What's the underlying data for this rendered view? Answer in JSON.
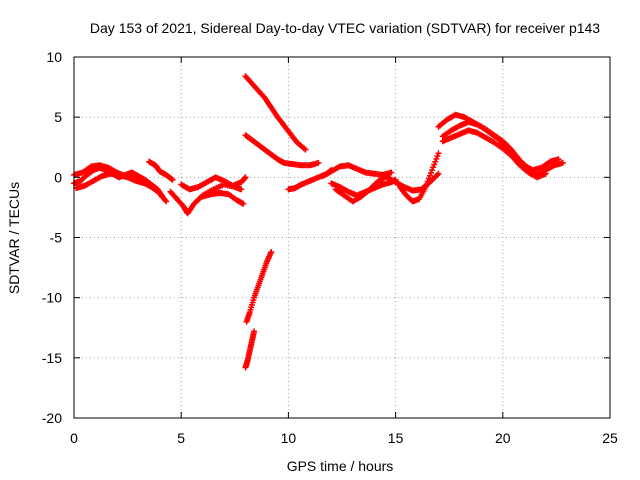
{
  "chart_data": {
    "type": "scatter",
    "title": "Day 153 of 2021, Sidereal Day-to-day VTEC variation (SDTVAR) for receiver p143",
    "xlabel": "GPS time / hours",
    "ylabel": "SDTVAR / TECUs",
    "xlim": [
      0,
      25
    ],
    "ylim": [
      -20,
      10
    ],
    "xticks": [
      0,
      5,
      10,
      15,
      20,
      25
    ],
    "yticks": [
      -20,
      -15,
      -10,
      -5,
      0,
      5,
      10
    ],
    "grid": true,
    "marker": "+",
    "color": "#ff0000",
    "series": [
      {
        "name": "track-a",
        "x": [
          0.0,
          0.3,
          0.6,
          0.9,
          1.2,
          1.5,
          1.8,
          2.1,
          2.4,
          2.7,
          3.0,
          3.3,
          3.6,
          3.9,
          4.1
        ],
        "y": [
          -0.5,
          -0.3,
          0.2,
          0.6,
          0.8,
          0.6,
          0.3,
          0.0,
          0.2,
          0.4,
          0.1,
          -0.2,
          -0.6,
          -1.0,
          -1.6
        ]
      },
      {
        "name": "track-b",
        "x": [
          0.0,
          0.4,
          0.8,
          1.2,
          1.6,
          2.0,
          2.4,
          2.8,
          3.2,
          3.6,
          4.0,
          4.3
        ],
        "y": [
          0.2,
          0.4,
          0.9,
          1.0,
          0.8,
          0.4,
          0.1,
          -0.1,
          -0.4,
          -0.8,
          -1.3,
          -2.0
        ]
      },
      {
        "name": "track-c",
        "x": [
          0.1,
          0.5,
          0.9,
          1.3,
          1.7,
          2.1,
          2.5,
          2.9,
          3.3
        ],
        "y": [
          -0.9,
          -0.7,
          -0.3,
          0.1,
          0.3,
          0.2,
          0.0,
          -0.3,
          -0.5
        ]
      },
      {
        "name": "track-d",
        "x": [
          3.5,
          3.8,
          4.0,
          4.3,
          4.6
        ],
        "y": [
          1.3,
          1.0,
          0.5,
          0.2,
          -0.2
        ]
      },
      {
        "name": "track-e",
        "x": [
          4.5,
          4.8,
          5.1,
          5.3,
          5.6,
          6.0,
          6.5,
          7.0,
          7.5,
          7.8
        ],
        "y": [
          -1.2,
          -1.8,
          -2.4,
          -3.0,
          -2.2,
          -1.5,
          -1.0,
          -0.6,
          -0.8,
          -1.0
        ]
      },
      {
        "name": "track-f",
        "x": [
          5.0,
          5.4,
          5.8,
          6.2,
          6.6,
          7.0,
          7.4,
          7.8,
          8.0
        ],
        "y": [
          -0.6,
          -1.0,
          -0.8,
          -0.4,
          0.0,
          -0.3,
          -0.7,
          -0.4,
          0.0
        ]
      },
      {
        "name": "track-g",
        "x": [
          6.0,
          6.4,
          6.8,
          7.2,
          7.6,
          7.9
        ],
        "y": [
          -1.6,
          -1.4,
          -1.3,
          -1.4,
          -1.9,
          -2.2
        ]
      },
      {
        "name": "track-h",
        "x": [
          8.0,
          8.3,
          8.6,
          8.9,
          9.2,
          9.5,
          9.8,
          10.1,
          10.4,
          10.8
        ],
        "y": [
          8.4,
          7.8,
          7.2,
          6.6,
          5.8,
          5.0,
          4.3,
          3.6,
          2.9,
          2.3
        ]
      },
      {
        "name": "track-i",
        "x": [
          8.0,
          8.3,
          8.6,
          8.9,
          9.2,
          9.5,
          9.8,
          10.2,
          10.6,
          11.0,
          11.4
        ],
        "y": [
          3.5,
          3.1,
          2.7,
          2.3,
          1.9,
          1.5,
          1.2,
          1.1,
          1.0,
          1.0,
          1.2
        ]
      },
      {
        "name": "track-j",
        "x": [
          9.2,
          9.0,
          8.8,
          8.6,
          8.4,
          8.2,
          8.05
        ],
        "y": [
          -6.2,
          -7.0,
          -8.0,
          -9.0,
          -10.0,
          -11.2,
          -12.0
        ]
      },
      {
        "name": "track-k",
        "x": [
          8.4,
          8.3,
          8.2,
          8.1,
          8.0
        ],
        "y": [
          -12.8,
          -13.6,
          -14.4,
          -15.2,
          -15.8
        ]
      },
      {
        "name": "track-l",
        "x": [
          10.0,
          10.3,
          10.6,
          11.0,
          11.4,
          11.8,
          12.0
        ],
        "y": [
          -1.0,
          -0.9,
          -0.6,
          -0.3,
          0.0,
          0.3,
          0.6
        ]
      },
      {
        "name": "track-m",
        "x": [
          11.6,
          12.0,
          12.4,
          12.8,
          13.2,
          13.6,
          14.0,
          14.4,
          14.8
        ],
        "y": [
          0.1,
          0.5,
          0.9,
          1.0,
          0.7,
          0.4,
          0.3,
          0.2,
          0.4
        ]
      },
      {
        "name": "track-n",
        "x": [
          12.0,
          12.4,
          12.8,
          13.2,
          13.6,
          14.0,
          14.4,
          14.8,
          15.0
        ],
        "y": [
          -0.5,
          -0.8,
          -1.2,
          -1.5,
          -1.2,
          -0.9,
          -0.6,
          -0.4,
          -0.2
        ]
      },
      {
        "name": "track-o",
        "x": [
          12.2,
          12.6,
          13.0,
          13.4,
          13.8,
          14.2,
          14.6
        ],
        "y": [
          -1.0,
          -1.5,
          -2.0,
          -1.6,
          -1.0,
          -0.3,
          0.1
        ]
      },
      {
        "name": "track-p",
        "x": [
          14.6,
          15.0,
          15.4,
          15.8,
          16.2,
          16.6,
          17.0
        ],
        "y": [
          0.0,
          -0.4,
          -0.8,
          -1.1,
          -1.0,
          -0.4,
          0.3
        ]
      },
      {
        "name": "track-q",
        "x": [
          15.2,
          15.5,
          15.8,
          16.1,
          16.4,
          16.7,
          17.0
        ],
        "y": [
          -0.8,
          -1.5,
          -2.0,
          -1.8,
          -0.8,
          0.6,
          2.0
        ]
      },
      {
        "name": "track-r",
        "x": [
          17.2,
          17.6,
          18.0,
          18.4,
          18.8,
          19.2,
          19.6,
          20.0,
          20.4,
          20.8,
          21.2,
          21.6,
          22.0,
          22.4,
          22.8
        ],
        "y": [
          3.4,
          3.9,
          4.3,
          4.6,
          4.4,
          4.0,
          3.5,
          3.0,
          2.3,
          1.4,
          0.7,
          0.2,
          0.6,
          1.0,
          1.2
        ]
      },
      {
        "name": "track-s",
        "x": [
          17.0,
          17.4,
          17.8,
          18.2,
          18.6,
          19.0,
          19.4,
          19.8,
          20.2,
          20.6,
          21.0,
          21.4,
          21.8,
          22.2,
          22.6
        ],
        "y": [
          4.2,
          4.8,
          5.2,
          5.0,
          4.6,
          4.2,
          3.7,
          3.2,
          2.4,
          1.6,
          1.0,
          0.6,
          0.8,
          1.3,
          1.5
        ]
      },
      {
        "name": "track-t",
        "x": [
          17.2,
          17.6,
          18.0,
          18.4,
          18.8,
          19.2,
          19.6,
          20.0,
          20.4,
          20.8,
          21.2,
          21.6,
          22.0
        ],
        "y": [
          3.0,
          3.3,
          3.6,
          3.9,
          3.7,
          3.3,
          2.9,
          2.4,
          1.8,
          1.0,
          0.4,
          0.0,
          0.3
        ]
      }
    ]
  }
}
